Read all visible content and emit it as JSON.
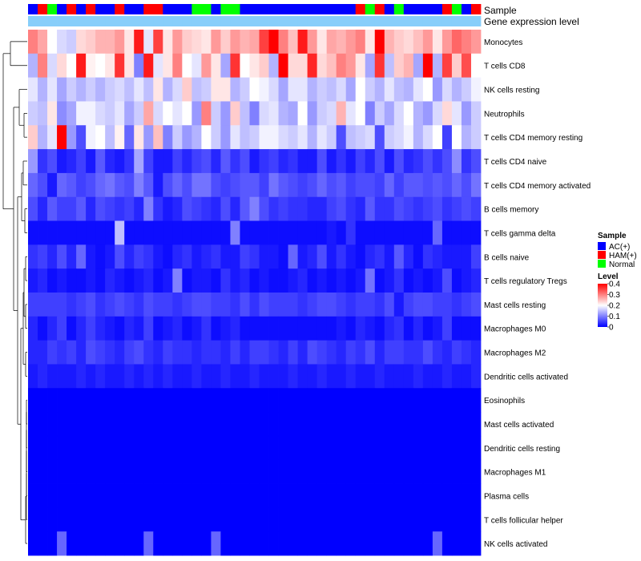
{
  "chart_data": {
    "type": "heatmap",
    "title": "",
    "annotation_tracks": [
      "Sample",
      "Gene expression level"
    ],
    "sample_groups": [
      "A",
      "H",
      "N",
      "A",
      "H",
      "A",
      "H",
      "A",
      "A",
      "H",
      "A",
      "A",
      "H",
      "H",
      "A",
      "A",
      "A",
      "N",
      "N",
      "A",
      "N",
      "N",
      "A",
      "A",
      "A",
      "A",
      "A",
      "A",
      "A",
      "A",
      "A",
      "A",
      "A",
      "A",
      "H",
      "N",
      "H",
      "A",
      "N",
      "A",
      "A",
      "A",
      "A",
      "H",
      "N",
      "A",
      "H"
    ],
    "gene_expression_level_track": "constant",
    "rows": [
      "Monocytes",
      "T cells CD8",
      "NK cells resting",
      "Neutrophils",
      "T cells CD4 memory resting",
      "T cells CD4 naive",
      "T cells CD4 memory activated",
      "B cells memory",
      "T cells gamma delta",
      "B cells naive",
      "T cells regulatory  Tregs",
      "Mast cells resting",
      "Macrophages M0",
      "Macrophages M2",
      "Dendritic cells activated",
      "Eosinophils",
      "Mast cells activated",
      "Dendritic cells resting",
      "Macrophages M1",
      "Plasma cells",
      "T cells follicular helper",
      "NK cells activated"
    ],
    "n_columns": 47,
    "values": [
      [
        0.3,
        0.27,
        0.2,
        0.17,
        0.16,
        0.23,
        0.24,
        0.26,
        0.26,
        0.28,
        0.22,
        0.38,
        0.18,
        0.35,
        0.22,
        0.28,
        0.24,
        0.23,
        0.22,
        0.28,
        0.24,
        0.28,
        0.26,
        0.27,
        0.35,
        0.4,
        0.3,
        0.25,
        0.38,
        0.28,
        0.22,
        0.27,
        0.26,
        0.28,
        0.3,
        0.22,
        0.4,
        0.26,
        0.24,
        0.23,
        0.25,
        0.28,
        0.22,
        0.28,
        0.32,
        0.3,
        0.28
      ],
      [
        0.14,
        0.3,
        0.17,
        0.23,
        0.2,
        0.38,
        0.21,
        0.2,
        0.22,
        0.36,
        0.22,
        0.1,
        0.38,
        0.18,
        0.22,
        0.3,
        0.2,
        0.18,
        0.28,
        0.22,
        0.13,
        0.36,
        0.2,
        0.22,
        0.24,
        0.14,
        0.4,
        0.23,
        0.23,
        0.37,
        0.23,
        0.25,
        0.3,
        0.28,
        0.22,
        0.13,
        0.36,
        0.15,
        0.24,
        0.26,
        0.13,
        0.4,
        0.14,
        0.35,
        0.24,
        0.34,
        0.2
      ],
      [
        0.18,
        0.14,
        0.18,
        0.13,
        0.16,
        0.14,
        0.16,
        0.14,
        0.16,
        0.17,
        0.15,
        0.18,
        0.15,
        0.22,
        0.14,
        0.17,
        0.24,
        0.15,
        0.16,
        0.22,
        0.22,
        0.14,
        0.16,
        0.2,
        0.19,
        0.17,
        0.13,
        0.18,
        0.18,
        0.14,
        0.16,
        0.15,
        0.17,
        0.13,
        0.2,
        0.16,
        0.14,
        0.18,
        0.15,
        0.14,
        0.18,
        0.2,
        0.12,
        0.17,
        0.14,
        0.16,
        0.19
      ],
      [
        0.16,
        0.15,
        0.22,
        0.11,
        0.13,
        0.19,
        0.19,
        0.17,
        0.16,
        0.18,
        0.13,
        0.16,
        0.27,
        0.17,
        0.2,
        0.18,
        0.2,
        0.12,
        0.3,
        0.16,
        0.12,
        0.24,
        0.15,
        0.1,
        0.17,
        0.18,
        0.14,
        0.13,
        0.2,
        0.12,
        0.16,
        0.17,
        0.26,
        0.18,
        0.2,
        0.1,
        0.16,
        0.13,
        0.17,
        0.2,
        0.14,
        0.12,
        0.17,
        0.23,
        0.18,
        0.12,
        0.16
      ],
      [
        0.24,
        0.14,
        0.18,
        0.4,
        0.12,
        0.06,
        0.19,
        0.2,
        0.15,
        0.21,
        0.08,
        0.22,
        0.12,
        0.25,
        0.1,
        0.16,
        0.12,
        0.14,
        0.2,
        0.16,
        0.12,
        0.18,
        0.15,
        0.16,
        0.19,
        0.19,
        0.17,
        0.16,
        0.18,
        0.14,
        0.18,
        0.16,
        0.06,
        0.15,
        0.16,
        0.17,
        0.06,
        0.16,
        0.17,
        0.19,
        0.14,
        0.17,
        0.2,
        0.05,
        0.2,
        0.14,
        0.16
      ],
      [
        0.12,
        0.04,
        0.06,
        0.02,
        0.03,
        0.05,
        0.02,
        0.07,
        0.03,
        0.02,
        0.04,
        0.13,
        0.05,
        0.02,
        0.02,
        0.05,
        0.03,
        0.05,
        0.06,
        0.03,
        0.07,
        0.04,
        0.06,
        0.02,
        0.04,
        0.05,
        0.03,
        0.04,
        0.02,
        0.02,
        0.06,
        0.02,
        0.04,
        0.02,
        0.05,
        0.03,
        0.06,
        0.02,
        0.06,
        0.03,
        0.04,
        0.06,
        0.04,
        0.06,
        0.11,
        0.04,
        0.06
      ],
      [
        0.08,
        0.06,
        0.02,
        0.08,
        0.07,
        0.05,
        0.06,
        0.08,
        0.09,
        0.07,
        0.06,
        0.1,
        0.07,
        0.02,
        0.06,
        0.08,
        0.06,
        0.09,
        0.09,
        0.06,
        0.05,
        0.06,
        0.07,
        0.07,
        0.05,
        0.09,
        0.07,
        0.06,
        0.05,
        0.06,
        0.08,
        0.06,
        0.07,
        0.05,
        0.06,
        0.06,
        0.05,
        0.08,
        0.05,
        0.07,
        0.07,
        0.06,
        0.07,
        0.06,
        0.08,
        0.06,
        0.09
      ],
      [
        0.06,
        0.03,
        0.07,
        0.05,
        0.05,
        0.07,
        0.03,
        0.06,
        0.05,
        0.04,
        0.05,
        0.03,
        0.1,
        0.04,
        0.02,
        0.03,
        0.06,
        0.05,
        0.04,
        0.03,
        0.06,
        0.03,
        0.07,
        0.1,
        0.06,
        0.04,
        0.05,
        0.04,
        0.04,
        0.03,
        0.03,
        0.05,
        0.06,
        0.04,
        0.03,
        0.07,
        0.04,
        0.04,
        0.06,
        0.05,
        0.04,
        0.05,
        0.06,
        0.04,
        0.05,
        0.06,
        0.05
      ],
      [
        0.01,
        0.01,
        0.01,
        0.01,
        0.01,
        0.01,
        0.01,
        0.01,
        0.01,
        0.15,
        0.01,
        0.01,
        0.01,
        0.01,
        0.01,
        0.01,
        0.01,
        0.01,
        0.01,
        0.01,
        0.01,
        0.1,
        0.01,
        0.01,
        0.01,
        0.01,
        0.01,
        0.01,
        0.01,
        0.01,
        0.01,
        0.02,
        0.01,
        0.04,
        0.01,
        0.01,
        0.01,
        0.01,
        0.01,
        0.01,
        0.01,
        0.01,
        0.08,
        0.01,
        0.01,
        0.01,
        0.01
      ],
      [
        0.04,
        0.05,
        0.03,
        0.06,
        0.03,
        0.08,
        0.02,
        0.01,
        0.02,
        0.06,
        0.03,
        0.05,
        0.04,
        0.02,
        0.01,
        0.03,
        0.04,
        0.02,
        0.03,
        0.04,
        0.02,
        0.02,
        0.05,
        0.04,
        0.02,
        0.02,
        0.01,
        0.08,
        0.02,
        0.03,
        0.06,
        0.02,
        0.04,
        0.02,
        0.01,
        0.03,
        0.04,
        0.02,
        0.07,
        0.03,
        0.01,
        0.04,
        0.03,
        0.02,
        0.02,
        0.02,
        0.05
      ],
      [
        0.02,
        0.03,
        0.01,
        0.02,
        0.01,
        0.01,
        0.02,
        0.01,
        0.03,
        0.02,
        0.01,
        0.02,
        0.03,
        0.01,
        0.02,
        0.1,
        0.01,
        0.02,
        0.02,
        0.01,
        0.04,
        0.02,
        0.03,
        0.01,
        0.02,
        0.01,
        0.01,
        0.02,
        0.03,
        0.01,
        0.02,
        0.01,
        0.02,
        0.01,
        0.02,
        0.09,
        0.01,
        0.02,
        0.04,
        0.01,
        0.02,
        0.01,
        0.02,
        0.06,
        0.01,
        0.02,
        0.03
      ],
      [
        0.05,
        0.05,
        0.05,
        0.05,
        0.04,
        0.05,
        0.06,
        0.04,
        0.05,
        0.06,
        0.05,
        0.04,
        0.06,
        0.05,
        0.05,
        0.04,
        0.05,
        0.06,
        0.06,
        0.05,
        0.05,
        0.04,
        0.06,
        0.04,
        0.06,
        0.05,
        0.05,
        0.05,
        0.04,
        0.05,
        0.06,
        0.06,
        0.05,
        0.04,
        0.05,
        0.05,
        0.04,
        0.06,
        0.02,
        0.05,
        0.06,
        0.06,
        0.05,
        0.05,
        0.04,
        0.05,
        0.06
      ],
      [
        0.03,
        0.01,
        0.03,
        0.05,
        0.01,
        0.03,
        0.05,
        0.03,
        0.02,
        0.01,
        0.03,
        0.02,
        0.05,
        0.01,
        0.02,
        0.03,
        0.01,
        0.02,
        0.04,
        0.01,
        0.02,
        0.03,
        0.01,
        0.01,
        0.01,
        0.01,
        0.01,
        0.01,
        0.01,
        0.01,
        0.01,
        0.01,
        0.02,
        0.01,
        0.03,
        0.02,
        0.01,
        0.03,
        0.04,
        0.01,
        0.03,
        0.01,
        0.02,
        0.05,
        0.01,
        0.01,
        0.01
      ],
      [
        0.03,
        0.03,
        0.05,
        0.04,
        0.05,
        0.03,
        0.06,
        0.05,
        0.04,
        0.03,
        0.05,
        0.06,
        0.04,
        0.03,
        0.05,
        0.04,
        0.04,
        0.03,
        0.04,
        0.04,
        0.03,
        0.05,
        0.03,
        0.05,
        0.05,
        0.04,
        0.03,
        0.05,
        0.03,
        0.06,
        0.05,
        0.04,
        0.03,
        0.05,
        0.04,
        0.06,
        0.03,
        0.05,
        0.05,
        0.04,
        0.04,
        0.06,
        0.04,
        0.03,
        0.05,
        0.04,
        0.03
      ],
      [
        0.02,
        0.03,
        0.02,
        0.02,
        0.02,
        0.03,
        0.02,
        0.03,
        0.02,
        0.02,
        0.03,
        0.02,
        0.03,
        0.02,
        0.03,
        0.02,
        0.02,
        0.03,
        0.02,
        0.02,
        0.03,
        0.02,
        0.02,
        0.03,
        0.02,
        0.02,
        0.02,
        0.03,
        0.02,
        0.02,
        0.03,
        0.02,
        0.02,
        0.03,
        0.02,
        0.02,
        0.03,
        0.02,
        0.02,
        0.02,
        0.03,
        0.02,
        0.02,
        0.03,
        0.02,
        0.02,
        0.03
      ],
      [
        0,
        0,
        0,
        0,
        0,
        0,
        0,
        0,
        0,
        0,
        0,
        0,
        0,
        0,
        0,
        0,
        0,
        0,
        0,
        0,
        0,
        0,
        0,
        0,
        0,
        0,
        0,
        0,
        0,
        0,
        0,
        0,
        0,
        0,
        0,
        0,
        0,
        0,
        0,
        0,
        0,
        0,
        0,
        0,
        0,
        0,
        0
      ],
      [
        0,
        0,
        0,
        0,
        0,
        0,
        0,
        0,
        0,
        0,
        0,
        0,
        0,
        0,
        0,
        0,
        0,
        0,
        0,
        0,
        0,
        0,
        0,
        0,
        0,
        0,
        0,
        0,
        0,
        0,
        0,
        0,
        0,
        0,
        0,
        0,
        0,
        0,
        0,
        0,
        0,
        0,
        0,
        0,
        0,
        0,
        0
      ],
      [
        0,
        0,
        0,
        0,
        0,
        0,
        0,
        0,
        0,
        0,
        0,
        0,
        0,
        0,
        0,
        0,
        0,
        0,
        0,
        0,
        0,
        0,
        0,
        0,
        0,
        0,
        0,
        0,
        0,
        0,
        0,
        0,
        0,
        0,
        0,
        0,
        0,
        0,
        0,
        0,
        0,
        0,
        0,
        0,
        0,
        0,
        0
      ],
      [
        0,
        0,
        0,
        0,
        0,
        0,
        0,
        0,
        0,
        0,
        0,
        0,
        0,
        0,
        0,
        0,
        0,
        0,
        0,
        0,
        0,
        0,
        0,
        0,
        0,
        0,
        0,
        0,
        0,
        0,
        0,
        0,
        0,
        0,
        0,
        0,
        0,
        0,
        0,
        0,
        0,
        0,
        0,
        0,
        0,
        0,
        0
      ],
      [
        0,
        0,
        0,
        0,
        0,
        0,
        0,
        0,
        0,
        0,
        0,
        0,
        0,
        0,
        0,
        0,
        0,
        0,
        0,
        0,
        0,
        0,
        0,
        0,
        0,
        0,
        0,
        0,
        0,
        0,
        0,
        0,
        0,
        0,
        0,
        0,
        0,
        0,
        0,
        0,
        0,
        0,
        0,
        0,
        0,
        0,
        0
      ],
      [
        0,
        0,
        0,
        0,
        0,
        0,
        0,
        0,
        0,
        0,
        0,
        0,
        0,
        0,
        0,
        0,
        0,
        0,
        0,
        0,
        0,
        0,
        0,
        0,
        0,
        0,
        0,
        0,
        0,
        0,
        0,
        0,
        0,
        0,
        0,
        0,
        0,
        0,
        0,
        0,
        0,
        0,
        0,
        0,
        0,
        0,
        0
      ],
      [
        0,
        0,
        0,
        0.08,
        0,
        0,
        0,
        0,
        0,
        0,
        0,
        0,
        0.08,
        0,
        0,
        0,
        0,
        0,
        0,
        0.08,
        0,
        0,
        0,
        0,
        0,
        0,
        0,
        0,
        0,
        0,
        0,
        0,
        0,
        0,
        0,
        0,
        0,
        0,
        0,
        0,
        0,
        0,
        0.08,
        0,
        0,
        0,
        0
      ]
    ],
    "value_range": [
      0,
      0.4
    ],
    "legend": {
      "sample_title": "Sample",
      "sample_entries": [
        {
          "key": "A",
          "label": "AC(+)",
          "color": "#0000ff"
        },
        {
          "key": "H",
          "label": "HAM(+)",
          "color": "#ff0000"
        },
        {
          "key": "N",
          "label": "Normal",
          "color": "#00ff00"
        }
      ],
      "level_title": "Level",
      "level_ticks": [
        "0.4",
        "0.3",
        "0.2",
        "0.1",
        "0"
      ],
      "placement": "right"
    },
    "colors": {
      "low": "#0000ff",
      "mid": "#ffffff",
      "high": "#ff0000",
      "expression_track": "#87cefa"
    },
    "dendrogram": "rows"
  }
}
